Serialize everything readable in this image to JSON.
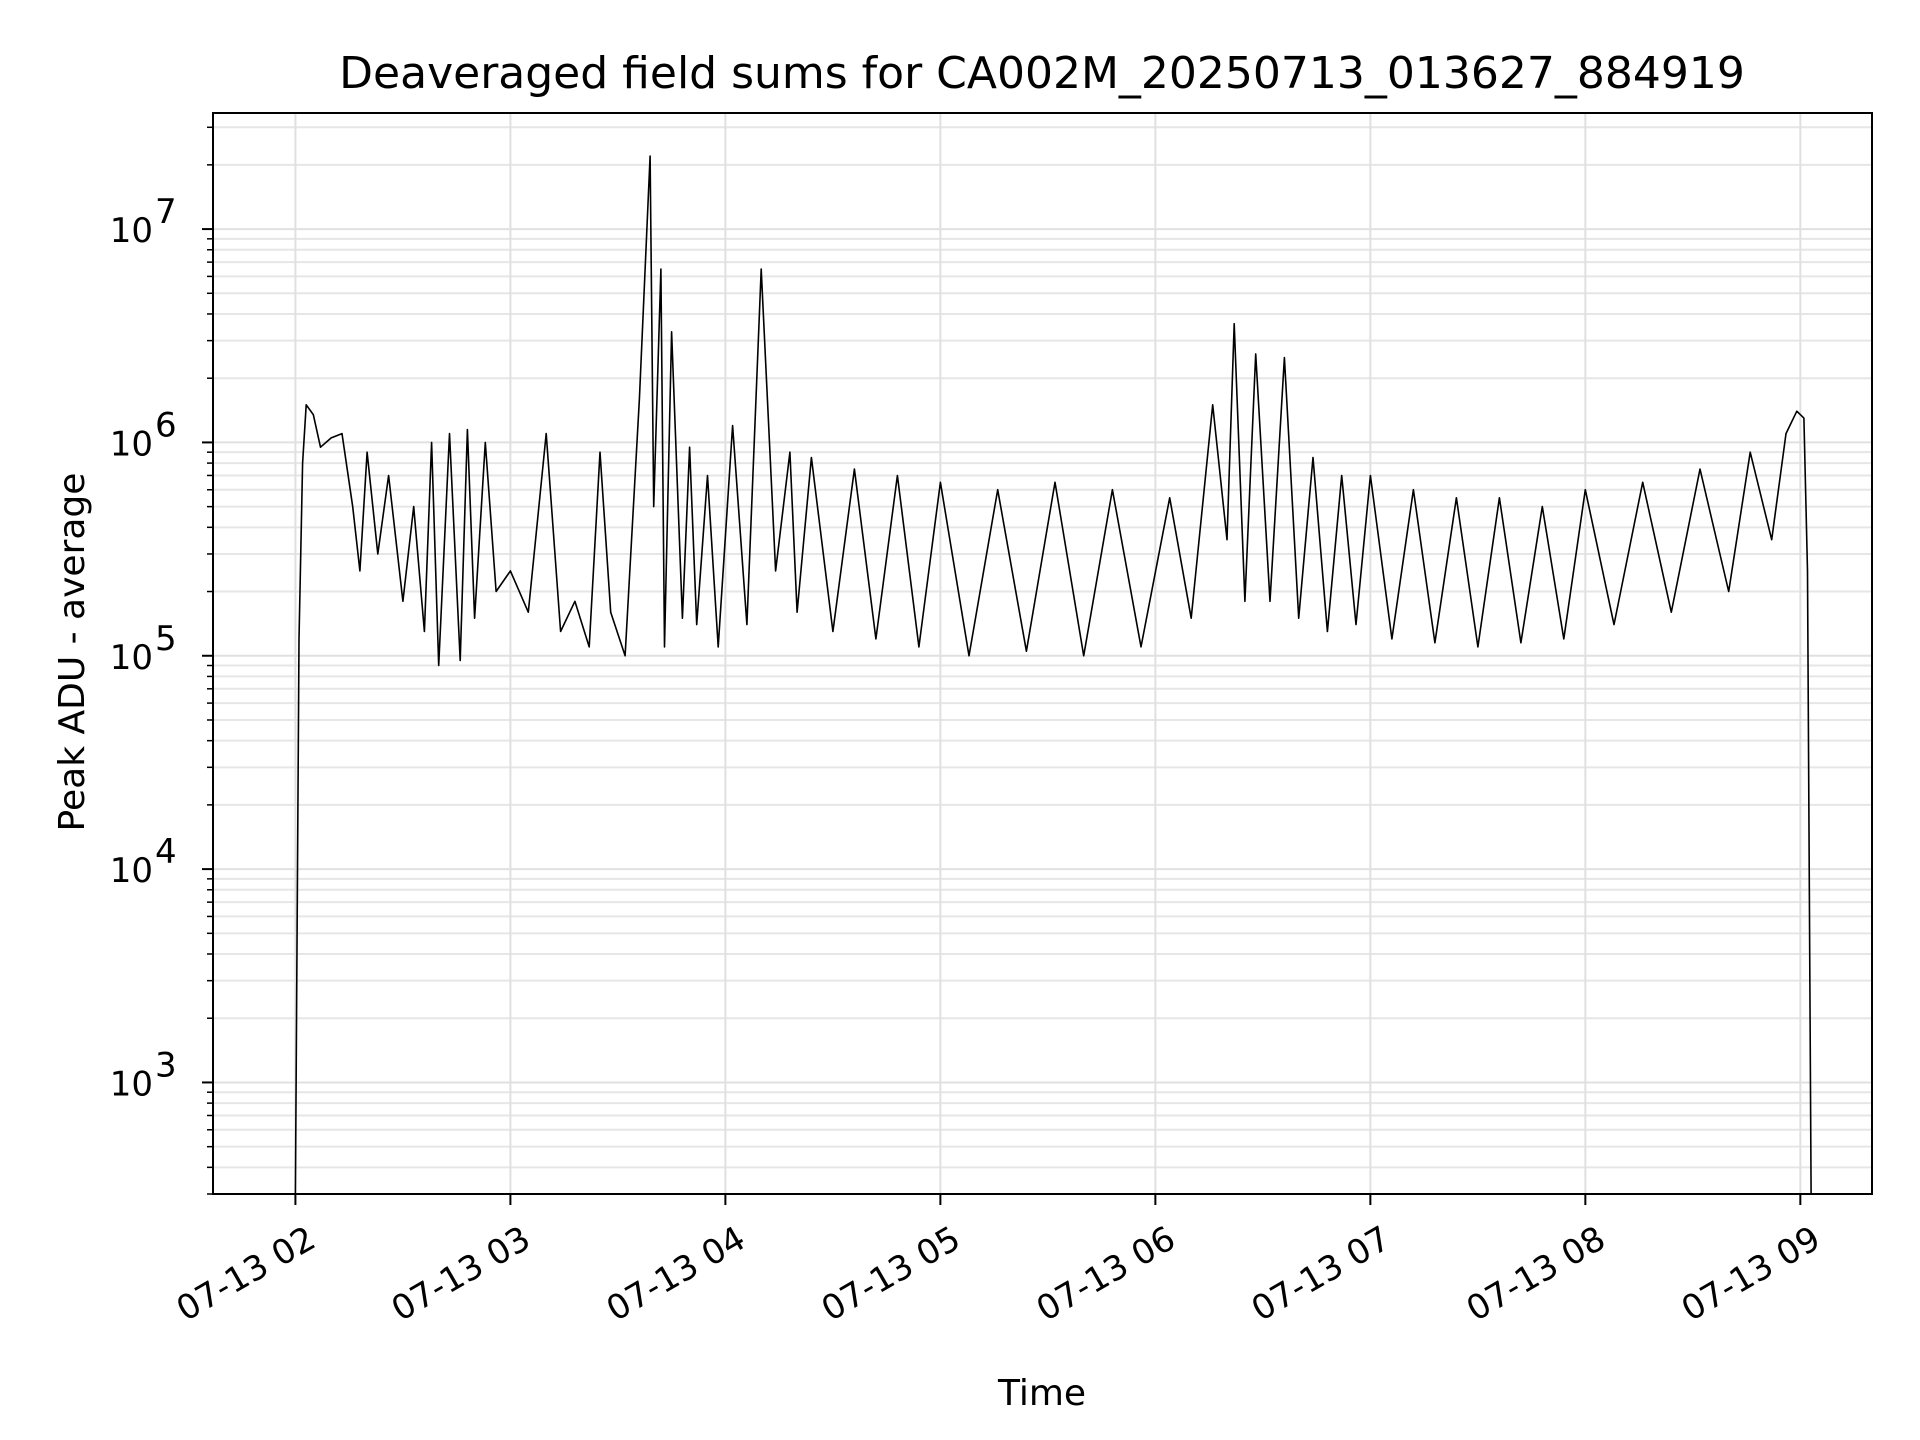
{
  "chart_data": {
    "type": "line",
    "title": "Deaveraged field sums for CA002M_20250713_013627_884919",
    "xlabel": "Time",
    "ylabel": "Peak ADU - average",
    "y_scale": "log",
    "ylim": [
      300,
      35000000
    ],
    "xlim": [
      "07-13 01:37",
      "07-13 09:20"
    ],
    "grid": true,
    "x_ticks": [
      "07-13 02",
      "07-13 03",
      "07-13 04",
      "07-13 05",
      "07-13 06",
      "07-13 07",
      "07-13 08",
      "07-13 09"
    ],
    "y_ticks": [
      {
        "value": 1000,
        "label": "10",
        "exp": "3"
      },
      {
        "value": 10000,
        "label": "10",
        "exp": "4"
      },
      {
        "value": 100000,
        "label": "10",
        "exp": "5"
      },
      {
        "value": 1000000,
        "label": "10",
        "exp": "6"
      },
      {
        "value": 10000000,
        "label": "10",
        "exp": "7"
      }
    ],
    "series": [
      {
        "color": "#000000",
        "x": [
          "07-13 02:00",
          "07-13 02:01",
          "07-13 02:02",
          "07-13 02:03",
          "07-13 02:05",
          "07-13 02:07",
          "07-13 02:10",
          "07-13 02:13",
          "07-13 02:16",
          "07-13 02:18",
          "07-13 02:20",
          "07-13 02:23",
          "07-13 02:26",
          "07-13 02:30",
          "07-13 02:33",
          "07-13 02:36",
          "07-13 02:38",
          "07-13 02:40",
          "07-13 02:43",
          "07-13 02:46",
          "07-13 02:48",
          "07-13 02:50",
          "07-13 02:53",
          "07-13 02:56",
          "07-13 03:00",
          "07-13 03:05",
          "07-13 03:10",
          "07-13 03:14",
          "07-13 03:18",
          "07-13 03:22",
          "07-13 03:25",
          "07-13 03:28",
          "07-13 03:32",
          "07-13 03:36",
          "07-13 03:39",
          "07-13 03:40",
          "07-13 03:42",
          "07-13 03:43",
          "07-13 03:45",
          "07-13 03:48",
          "07-13 03:50",
          "07-13 03:52",
          "07-13 03:55",
          "07-13 03:58",
          "07-13 04:02",
          "07-13 04:06",
          "07-13 04:10",
          "07-13 04:14",
          "07-13 04:18",
          "07-13 04:20",
          "07-13 04:24",
          "07-13 04:30",
          "07-13 04:36",
          "07-13 04:42",
          "07-13 04:48",
          "07-13 04:54",
          "07-13 05:00",
          "07-13 05:08",
          "07-13 05:16",
          "07-13 05:24",
          "07-13 05:32",
          "07-13 05:40",
          "07-13 05:48",
          "07-13 05:56",
          "07-13 06:04",
          "07-13 06:10",
          "07-13 06:16",
          "07-13 06:20",
          "07-13 06:22",
          "07-13 06:25",
          "07-13 06:28",
          "07-13 06:32",
          "07-13 06:36",
          "07-13 06:40",
          "07-13 06:44",
          "07-13 06:48",
          "07-13 06:52",
          "07-13 06:56",
          "07-13 07:00",
          "07-13 07:06",
          "07-13 07:12",
          "07-13 07:18",
          "07-13 07:24",
          "07-13 07:30",
          "07-13 07:36",
          "07-13 07:42",
          "07-13 07:48",
          "07-13 07:54",
          "07-13 08:00",
          "07-13 08:08",
          "07-13 08:16",
          "07-13 08:24",
          "07-13 08:32",
          "07-13 08:40",
          "07-13 08:46",
          "07-13 08:52",
          "07-13 08:56",
          "07-13 08:59",
          "07-13 09:01",
          "07-13 09:02",
          "07-13 09:03"
        ],
        "y": [
          300,
          120000,
          800000,
          1500000,
          1350000,
          950000,
          1050000,
          1100000,
          500000,
          250000,
          900000,
          300000,
          700000,
          180000,
          500000,
          130000,
          1000000,
          90000,
          1100000,
          95000,
          1150000,
          150000,
          1000000,
          200000,
          250000,
          160000,
          1100000,
          130000,
          180000,
          110000,
          900000,
          160000,
          100000,
          1600000,
          22000000,
          500000,
          6500000,
          110000,
          3300000,
          150000,
          950000,
          140000,
          700000,
          110000,
          1200000,
          140000,
          6500000,
          250000,
          900000,
          160000,
          850000,
          130000,
          750000,
          120000,
          700000,
          110000,
          650000,
          100000,
          600000,
          105000,
          650000,
          100000,
          600000,
          110000,
          550000,
          150000,
          1500000,
          350000,
          3600000,
          180000,
          2600000,
          180000,
          2500000,
          150000,
          850000,
          130000,
          700000,
          140000,
          700000,
          120000,
          600000,
          115000,
          550000,
          110000,
          550000,
          115000,
          500000,
          120000,
          600000,
          140000,
          650000,
          160000,
          750000,
          200000,
          900000,
          350000,
          1100000,
          1400000,
          1300000,
          250000,
          300
        ]
      }
    ]
  }
}
